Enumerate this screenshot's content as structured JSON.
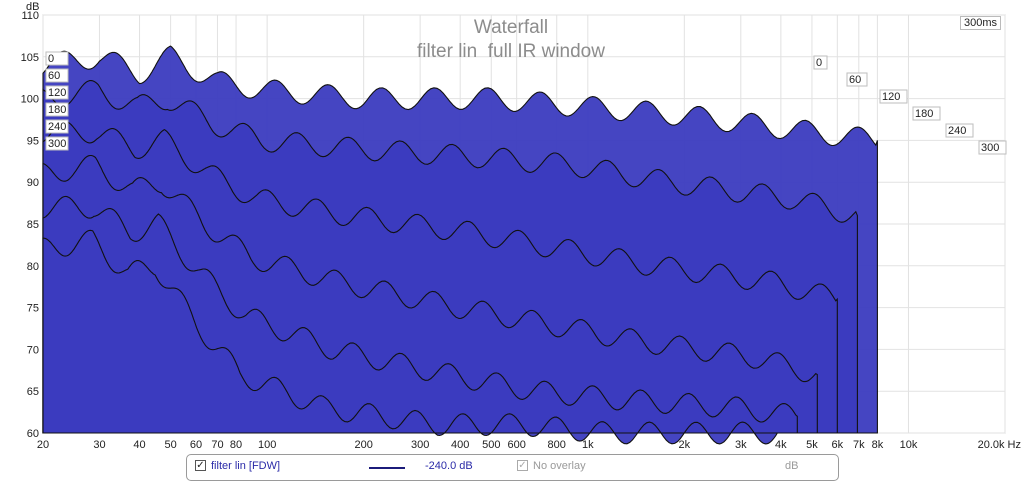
{
  "chart_data": {
    "type": "area",
    "title": "Waterfall",
    "subtitle": "filter lin  full IR window",
    "ylabel": "dB",
    "xlabel_unit": "Hz",
    "x_scale": "log",
    "xlim": [
      20,
      20000
    ],
    "ylim": [
      60,
      110
    ],
    "x_ticks": [
      "20",
      "30",
      "40",
      "50",
      "60",
      "70",
      "80",
      "100",
      "200",
      "300",
      "400",
      "500",
      "600",
      "800",
      "1k",
      "2k",
      "3k",
      "4k",
      "5k",
      "6k",
      "7k",
      "8k",
      "10k",
      "20.0k Hz"
    ],
    "x_tick_values": [
      20,
      30,
      40,
      50,
      60,
      70,
      80,
      100,
      200,
      300,
      400,
      500,
      600,
      800,
      1000,
      2000,
      3000,
      4000,
      5000,
      6000,
      7000,
      8000,
      10000,
      20000
    ],
    "y_ticks": [
      110,
      105,
      100,
      95,
      90,
      85,
      80,
      75,
      70,
      65,
      60
    ],
    "time_axis_unit": "ms",
    "time_axis_max_label": "300ms",
    "time_ticks_left": [
      "0",
      "60",
      "120",
      "180",
      "240",
      "300"
    ],
    "time_ticks_right": [
      "0",
      "60",
      "120",
      "180",
      "240",
      "300"
    ],
    "fill_color": "#3b3bbf",
    "line_color": "#111111",
    "series": [
      {
        "slice_ms": 0,
        "x": [
          20,
          30,
          40,
          50,
          70,
          100,
          200,
          500,
          1000,
          2000,
          5000,
          8000
        ],
        "values": [
          104,
          105,
          103,
          105,
          102,
          101,
          100,
          100,
          99,
          98,
          96,
          95
        ]
      },
      {
        "slice_ms": 60,
        "x": [
          20,
          30,
          40,
          50,
          70,
          100,
          200,
          500,
          1000,
          2000,
          5000,
          8000
        ],
        "values": [
          100,
          101,
          99,
          100,
          97,
          95,
          94,
          93,
          92,
          90,
          88,
          86
        ]
      },
      {
        "slice_ms": 120,
        "x": [
          20,
          30,
          40,
          50,
          70,
          100,
          200,
          500,
          1000,
          2000,
          5000,
          8000
        ],
        "values": [
          96,
          96,
          94,
          95,
          91,
          88,
          86,
          84,
          82,
          80,
          78,
          76
        ]
      },
      {
        "slice_ms": 180,
        "x": [
          20,
          30,
          40,
          50,
          70,
          100,
          200,
          500,
          1000,
          2000,
          5000,
          8000
        ],
        "values": [
          91,
          92,
          89,
          90,
          85,
          81,
          78,
          75,
          73,
          71,
          69,
          67
        ]
      },
      {
        "slice_ms": 240,
        "x": [
          20,
          30,
          40,
          50,
          70,
          100,
          200,
          500,
          1000,
          2000,
          5000,
          8000
        ],
        "values": [
          87,
          87,
          84,
          85,
          79,
          74,
          70,
          67,
          65,
          64,
          63,
          62
        ]
      },
      {
        "slice_ms": 300,
        "x": [
          20,
          30,
          40,
          50,
          70,
          100,
          200,
          500,
          1000,
          2000,
          5000,
          8000
        ],
        "values": [
          82,
          83,
          79,
          80,
          73,
          67,
          63,
          61,
          61,
          60,
          60,
          60
        ]
      }
    ]
  },
  "legend": {
    "series_label": "filter lin [FDW]",
    "series_value": "-240.0 dB",
    "overlay_label": "No overlay",
    "overlay_unit": "dB"
  }
}
